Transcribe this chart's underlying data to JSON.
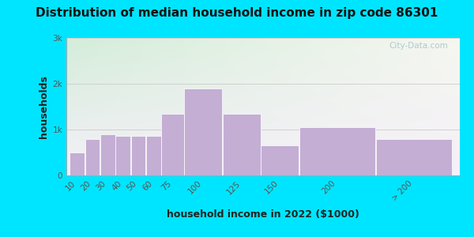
{
  "title": "Distribution of median household income in zip code 86301",
  "xlabel": "household income in 2022 ($1000)",
  "ylabel": "households",
  "bar_labels": [
    "10",
    "20",
    "30",
    "40",
    "50",
    "60",
    "75",
    "100",
    "125",
    "150",
    "200",
    "> 200"
  ],
  "bar_values": [
    500,
    800,
    900,
    855,
    855,
    855,
    1350,
    1900,
    1350,
    650,
    1050,
    800
  ],
  "bar_widths": [
    10,
    10,
    10,
    10,
    10,
    10,
    15,
    25,
    25,
    25,
    50,
    50
  ],
  "bar_lefts": [
    5,
    15,
    25,
    35,
    45,
    55,
    65,
    80,
    105,
    130,
    155,
    205
  ],
  "bar_color": "#c4aed4",
  "bar_edgecolor": "#ffffff",
  "ylim": [
    0,
    3000
  ],
  "yticks": [
    0,
    1000,
    2000,
    3000
  ],
  "ytick_labels": [
    "0",
    "1k",
    "2k",
    "3k"
  ],
  "background_outer": "#00e5ff",
  "bg_color_topleft": "#d4edda",
  "bg_color_topright": "#eaf4ea",
  "bg_color_bottom": "#f5f0f8",
  "grid_color": "#cccccc",
  "title_fontsize": 11,
  "axis_label_fontsize": 9,
  "tick_fontsize": 7.5,
  "watermark_text": "City-Data.com",
  "watermark_color": "#aac4cc",
  "title_color": "#111111",
  "axis_label_color": "#222222",
  "tick_color": "#555555"
}
